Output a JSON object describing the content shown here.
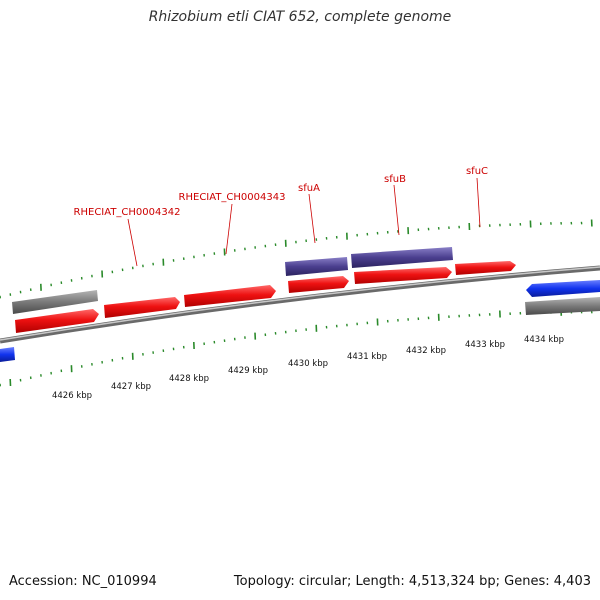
{
  "title": "Rhizobium etli CIAT 652, complete genome",
  "accession": "Accession: NC_010994",
  "summary": "Topology: circular; Length: 4,513,324 bp; Genes: 4,403",
  "colors": {
    "backbone": "#9a9a9a",
    "cds": "#ee1111",
    "gene": "#7a7a7a",
    "protein": "#4b3f8f",
    "other_strand": "#1133ee",
    "tick": "#2a8a2a",
    "label": "#cc0000"
  },
  "gene_labels": [
    "RHECIAT_CH0004342",
    "RHECIAT_CH0004343",
    "sfuA",
    "sfuB",
    "sfuC"
  ],
  "scale_labels": [
    "4426 kbp",
    "4427 kbp",
    "4428 kbp",
    "4429 kbp",
    "4430 kbp",
    "4431 kbp",
    "4432 kbp",
    "4433 kbp",
    "4434 kbp"
  ]
}
